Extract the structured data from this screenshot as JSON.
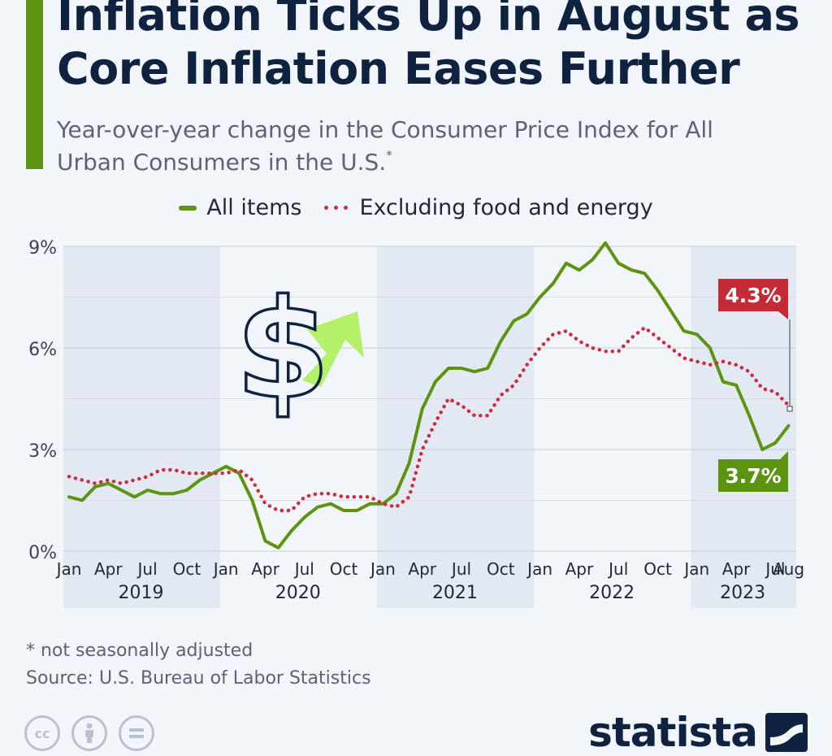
{
  "header": {
    "title": "Inflation Ticks Up in August as Core Inflation Eases Further",
    "subtitle": "Year-over-year change in the Consumer Price Index for All Urban Consumers in the U.S.",
    "subtitle_mark": "*",
    "accent_color": "#5c9410"
  },
  "legend": {
    "position": "top-center",
    "items": [
      "All items",
      "Excluding food and energy"
    ]
  },
  "chart_data": {
    "type": "line",
    "title": "Inflation Ticks Up in August as Core Inflation Eases Further",
    "subtitle": "Year-over-year change in the Consumer Price Index for All Urban Consumers in the U.S.",
    "xlabel": "",
    "ylabel": "",
    "ylim": [
      0,
      9
    ],
    "yticks": [
      "0%",
      "3%",
      "6%",
      "9%"
    ],
    "grid": true,
    "x_start": "2019-01",
    "x_end": "2023-08",
    "month_ticks": [
      "Jan",
      "Apr",
      "Jul",
      "Oct"
    ],
    "last_tick": "Aug",
    "years": [
      "2019",
      "2020",
      "2021",
      "2022",
      "2023"
    ],
    "series": [
      {
        "name": "All items",
        "color": "#5c9410",
        "style": "solid",
        "values": [
          1.6,
          1.5,
          1.9,
          2.0,
          1.8,
          1.6,
          1.8,
          1.7,
          1.7,
          1.8,
          2.1,
          2.3,
          2.5,
          2.3,
          1.5,
          0.3,
          0.1,
          0.6,
          1.0,
          1.3,
          1.4,
          1.2,
          1.2,
          1.4,
          1.4,
          1.7,
          2.6,
          4.2,
          5.0,
          5.4,
          5.4,
          5.3,
          5.4,
          6.2,
          6.8,
          7.0,
          7.5,
          7.9,
          8.5,
          8.3,
          8.6,
          9.1,
          8.5,
          8.3,
          8.2,
          7.7,
          7.1,
          6.5,
          6.4,
          6.0,
          5.0,
          4.9,
          4.0,
          3.0,
          3.2,
          3.7
        ]
      },
      {
        "name": "Excluding food and energy",
        "color": "#d02b3c",
        "style": "dotted",
        "values": [
          2.2,
          2.1,
          2.0,
          2.1,
          2.0,
          2.1,
          2.2,
          2.4,
          2.4,
          2.3,
          2.3,
          2.3,
          2.3,
          2.4,
          2.1,
          1.4,
          1.2,
          1.2,
          1.6,
          1.7,
          1.7,
          1.6,
          1.6,
          1.6,
          1.4,
          1.3,
          1.6,
          3.0,
          3.8,
          4.5,
          4.3,
          4.0,
          4.0,
          4.6,
          4.9,
          5.5,
          6.0,
          6.4,
          6.5,
          6.2,
          6.0,
          5.9,
          5.9,
          6.3,
          6.6,
          6.3,
          6.0,
          5.7,
          5.6,
          5.5,
          5.6,
          5.5,
          5.3,
          4.8,
          4.7,
          4.3
        ]
      }
    ],
    "annotations": [
      {
        "series": "Excluding food and energy",
        "x": "2023-08",
        "y": 4.3,
        "label": "4.3%",
        "color": "#c62a36"
      },
      {
        "series": "All items",
        "x": "2023-08",
        "y": 3.7,
        "label": "3.7%",
        "color": "#5c9410"
      }
    ],
    "icons": [
      "dollar-sign-icon",
      "up-arrow-icon"
    ]
  },
  "footer": {
    "footnote": "* not seasonally adjusted",
    "source": "Source: U.S. Bureau of Labor Statistics",
    "brand": "statista",
    "license_icons": [
      "cc-icon",
      "attribution-icon",
      "no-derivatives-icon"
    ],
    "license_cc": "cc"
  }
}
